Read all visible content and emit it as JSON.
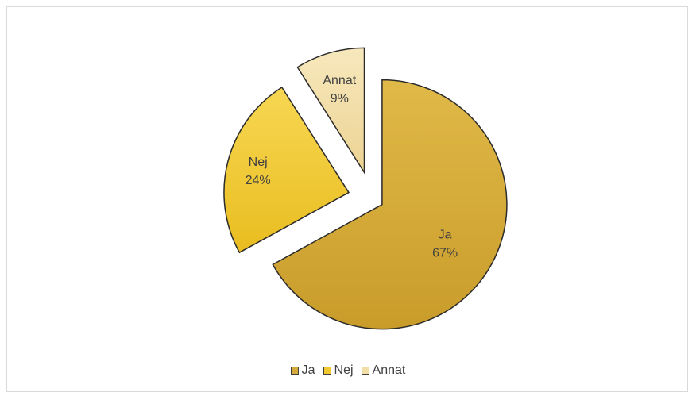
{
  "chart_data": {
    "type": "pie",
    "categories": [
      "Ja",
      "Nej",
      "Annat"
    ],
    "values": [
      67,
      24,
      9
    ],
    "value_labels": [
      "67%",
      "24%",
      "9%"
    ],
    "colors": [
      "#d4aa3a",
      "#f2c830",
      "#f2dfa8"
    ],
    "exploded": true,
    "legend_position": "bottom",
    "title": ""
  },
  "legend": {
    "items": [
      {
        "label": "Ja",
        "color": "#d4aa3a"
      },
      {
        "label": "Nej",
        "color": "#f2c830"
      },
      {
        "label": "Annat",
        "color": "#f2dfa8"
      }
    ]
  }
}
